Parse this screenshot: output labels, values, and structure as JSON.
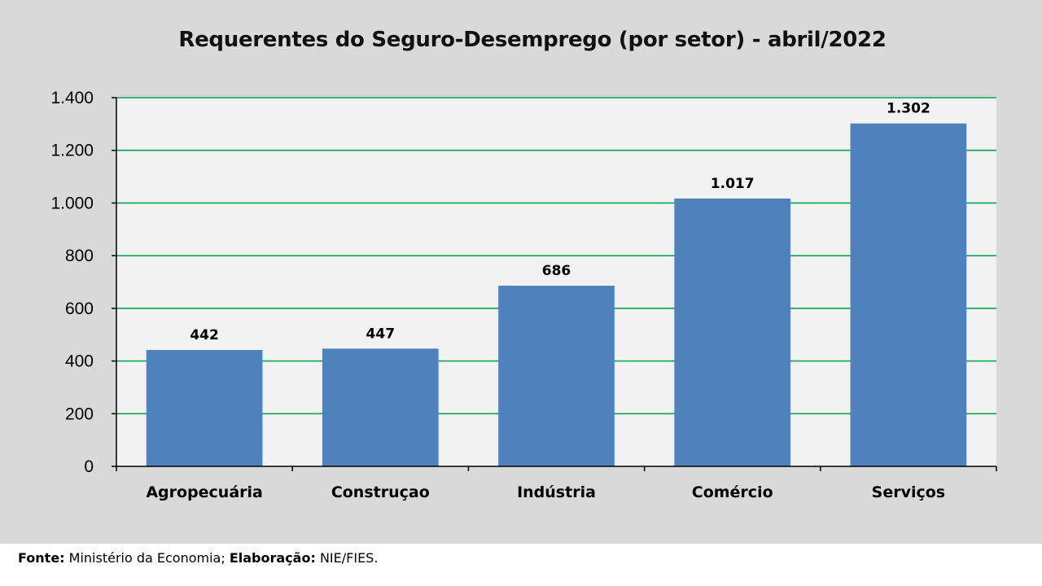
{
  "chart_data": {
    "type": "bar",
    "title": "Requerentes do Seguro-Desemprego (por setor) - abril/2022",
    "categories": [
      "Agropecuária",
      "Construçao",
      "Indústria",
      "Comércio",
      "Serviços"
    ],
    "values": [
      442,
      447,
      686,
      1017,
      1302
    ],
    "data_labels": [
      "442",
      "447",
      "686",
      "1.017",
      "1.302"
    ],
    "xlabel": "",
    "ylabel": "",
    "ylim": [
      0,
      1400
    ],
    "yticks": [
      0,
      200,
      400,
      600,
      800,
      1000,
      1200,
      1400
    ],
    "ytick_labels": [
      "0",
      "200",
      "400",
      "600",
      "800",
      "1.000",
      "1.200",
      "1.400"
    ],
    "grid": true,
    "legend": "none",
    "colors": {
      "bar": "#4f81bd",
      "grid": "#00a651",
      "plot_background": "#f2f2f2",
      "frame_background": "#d9d9d9"
    }
  },
  "footer": {
    "source_label": "Fonte:",
    "source_text": "Ministério da Economia;",
    "elaboration_label": "Elaboração:",
    "elaboration_text": "NIE/FIES."
  }
}
